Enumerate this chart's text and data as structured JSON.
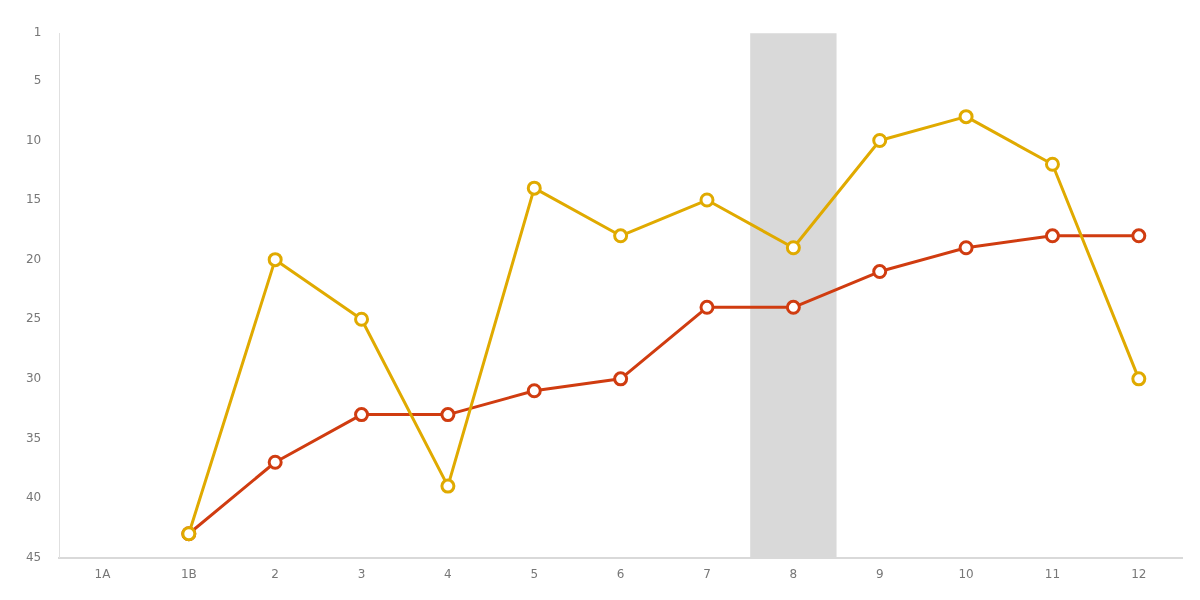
{
  "chart_data": {
    "type": "line",
    "categories": [
      "1A",
      "1B",
      "2",
      "3",
      "4",
      "5",
      "6",
      "7",
      "8",
      "9",
      "10",
      "11",
      "12"
    ],
    "series": [
      {
        "color": "#e0aa00",
        "values": [
          null,
          43,
          20,
          25,
          39,
          14,
          18,
          15,
          19,
          10,
          8,
          12,
          30
        ]
      },
      {
        "color": "#d03c10",
        "values": [
          null,
          43,
          37,
          33,
          33,
          31,
          30,
          24,
          24,
          21,
          19,
          18,
          18
        ]
      }
    ],
    "ylim": [
      45,
      1
    ],
    "yticks": [
      1,
      5,
      10,
      15,
      20,
      25,
      30,
      35,
      40,
      45
    ],
    "bands": [
      {
        "axis": "x",
        "from": "8",
        "to": "8",
        "color": "#d9d9d9"
      }
    ],
    "grid": false,
    "legend": false,
    "marker": "circle",
    "line_style": "solid"
  }
}
